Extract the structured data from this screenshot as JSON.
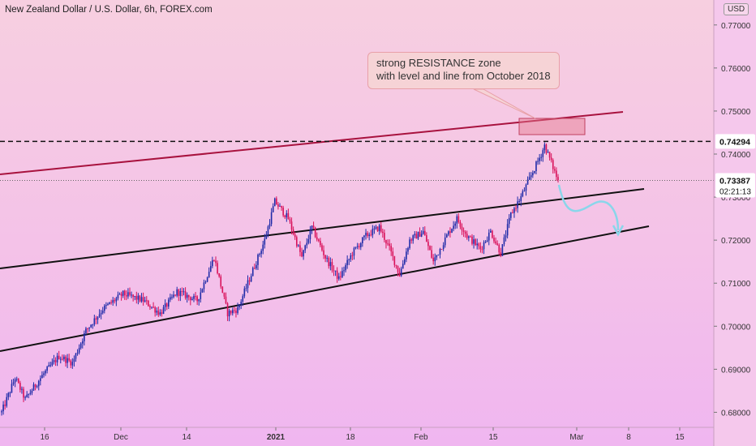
{
  "chart_data": {
    "type": "candlestick",
    "title": "New Zealand Dollar / U.S. Dollar, 6h, FOREX.com",
    "currency": "USD",
    "x_ticks": [
      "16",
      "Dec",
      "14",
      "2021",
      "18",
      "Feb",
      "15",
      "Mar",
      "8",
      "15"
    ],
    "y_ticks": [
      "0.68000",
      "0.69000",
      "0.70000",
      "0.71000",
      "0.72000",
      "0.73000",
      "0.74000",
      "0.75000",
      "0.76000",
      "0.77000"
    ],
    "ylim": [
      0.6765,
      0.7758
    ],
    "resistance_level": "0.74294",
    "current_price": "0.73387",
    "countdown": "02:21:13",
    "annotation": {
      "line1": "strong RESISTANCE zone",
      "line2": "with level and line from October 2018"
    },
    "price_anchors": [
      {
        "i": 0,
        "p": 0.68
      },
      {
        "i": 8,
        "p": 0.688
      },
      {
        "i": 14,
        "p": 0.683
      },
      {
        "i": 24,
        "p": 0.6885
      },
      {
        "i": 34,
        "p": 0.693
      },
      {
        "i": 42,
        "p": 0.6915
      },
      {
        "i": 50,
        "p": 0.699
      },
      {
        "i": 60,
        "p": 0.704
      },
      {
        "i": 72,
        "p": 0.7075
      },
      {
        "i": 84,
        "p": 0.706
      },
      {
        "i": 94,
        "p": 0.703
      },
      {
        "i": 104,
        "p": 0.708
      },
      {
        "i": 116,
        "p": 0.706
      },
      {
        "i": 126,
        "p": 0.716
      },
      {
        "i": 134,
        "p": 0.703
      },
      {
        "i": 140,
        "p": 0.704
      },
      {
        "i": 148,
        "p": 0.712
      },
      {
        "i": 156,
        "p": 0.72
      },
      {
        "i": 162,
        "p": 0.729
      },
      {
        "i": 170,
        "p": 0.725
      },
      {
        "i": 178,
        "p": 0.716
      },
      {
        "i": 184,
        "p": 0.723
      },
      {
        "i": 192,
        "p": 0.716
      },
      {
        "i": 200,
        "p": 0.711
      },
      {
        "i": 208,
        "p": 0.717
      },
      {
        "i": 216,
        "p": 0.721
      },
      {
        "i": 224,
        "p": 0.723
      },
      {
        "i": 230,
        "p": 0.718
      },
      {
        "i": 236,
        "p": 0.712
      },
      {
        "i": 242,
        "p": 0.72
      },
      {
        "i": 250,
        "p": 0.722
      },
      {
        "i": 256,
        "p": 0.715
      },
      {
        "i": 264,
        "p": 0.721
      },
      {
        "i": 270,
        "p": 0.725
      },
      {
        "i": 276,
        "p": 0.721
      },
      {
        "i": 284,
        "p": 0.718
      },
      {
        "i": 290,
        "p": 0.722
      },
      {
        "i": 296,
        "p": 0.717
      },
      {
        "i": 302,
        "p": 0.726
      },
      {
        "i": 308,
        "p": 0.73
      },
      {
        "i": 314,
        "p": 0.735
      },
      {
        "i": 320,
        "p": 0.74
      },
      {
        "i": 322,
        "p": 0.742
      },
      {
        "i": 325,
        "p": 0.739
      },
      {
        "i": 330,
        "p": 0.7338
      }
    ]
  }
}
